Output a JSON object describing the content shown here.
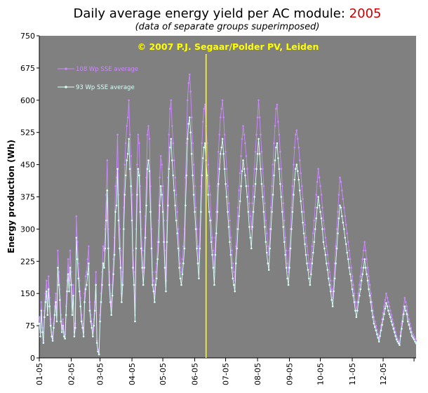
{
  "title": {
    "prefix": "Daily average energy yield per AC module: ",
    "year": "2005"
  },
  "subtitle": "(data of separate groups superimposed)",
  "copyright": "© 2007 P.J. Segaar/Polder PV, Leiden",
  "colors": {
    "plot_bg": "#808080",
    "series_108": "#cc88ff",
    "series_93": "#d8fff8",
    "marker_line": "#ffff00",
    "title_year": "#cc0000"
  },
  "chart_data": {
    "type": "line",
    "title": "Daily average energy yield per AC module: 2005",
    "subtitle": "(data of separate groups superimposed)",
    "xlabel": "",
    "ylabel": "Energy production (Wh)",
    "ylim": [
      0,
      750
    ],
    "y_ticks": [
      0,
      75,
      150,
      225,
      300,
      375,
      450,
      525,
      600,
      675,
      750
    ],
    "x_ticks": [
      "01-05",
      "02-05",
      "03-05",
      "04-05",
      "05-05",
      "06-05",
      "07-05",
      "08-05",
      "09-05",
      "10-05",
      "11-05",
      "12-05"
    ],
    "x_unit": "day of year 2005",
    "grid": false,
    "legend_position": "top-left",
    "marker_day": 162,
    "series": [
      {
        "name": "108 Wp SSE average",
        "color": "#cc88ff",
        "values": [
          95,
          60,
          130,
          70,
          40,
          110,
          150,
          180,
          120,
          190,
          140,
          90,
          60,
          45,
          80,
          120,
          150,
          100,
          250,
          200,
          160,
          100,
          70,
          90,
          60,
          55,
          120,
          180,
          230,
          180,
          250,
          200,
          120,
          170,
          60,
          80,
          330,
          270,
          220,
          180,
          140,
          100,
          80,
          60,
          150,
          190,
          200,
          230,
          260,
          130,
          100,
          80,
          60,
          90,
          130,
          200,
          40,
          20,
          10,
          100,
          150,
          200,
          260,
          250,
          300,
          380,
          460,
          300,
          200,
          150,
          120,
          170,
          230,
          280,
          400,
          420,
          520,
          380,
          300,
          250,
          150,
          200,
          350,
          450,
          500,
          540,
          560,
          600,
          520,
          470,
          380,
          250,
          200,
          100,
          300,
          450,
          520,
          500,
          400,
          300,
          250,
          200,
          250,
          330,
          420,
          520,
          540,
          510,
          400,
          300,
          200,
          180,
          150,
          200,
          220,
          270,
          320,
          420,
          470,
          450,
          400,
          320,
          250,
          180,
          320,
          420,
          520,
          580,
          600,
          540,
          500,
          460,
          420,
          380,
          340,
          300,
          250,
          220,
          200,
          230,
          260,
          300,
          420,
          500,
          600,
          640,
          660,
          620,
          560,
          500,
          450,
          400,
          350,
          300,
          260,
          220,
          300,
          400,
          500,
          550,
          580,
          590,
          540,
          500,
          450,
          400,
          380,
          320,
          280,
          250,
          200,
          280,
          340,
          400,
          480,
          520,
          560,
          580,
          600,
          560,
          520,
          480,
          440,
          400,
          360,
          320,
          280,
          250,
          220,
          200,
          180,
          260,
          300,
          350,
          390,
          430,
          470,
          510,
          540,
          520,
          500,
          470,
          440,
          400,
          360,
          330,
          300,
          360,
          400,
          440,
          480,
          520,
          560,
          600,
          560,
          520,
          480,
          440,
          400,
          360,
          320,
          290,
          260,
          240,
          300,
          350,
          400,
          450,
          500,
          540,
          580,
          590,
          550,
          520,
          480,
          440,
          400,
          360,
          320,
          280,
          250,
          220,
          200,
          250,
          300,
          350,
          400,
          450,
          490,
          520,
          530,
          510,
          490,
          460,
          430,
          400,
          370,
          340,
          310,
          280,
          260,
          240,
          220,
          200,
          230,
          260,
          290,
          320,
          350,
          380,
          410,
          440,
          420,
          400,
          380,
          350,
          320,
          300,
          280,
          260,
          240,
          220,
          200,
          180,
          160,
          140,
          180,
          220,
          260,
          300,
          340,
          380,
          420,
          410,
          390,
          370,
          350,
          330,
          310,
          290,
          270,
          250,
          230,
          210,
          190,
          170,
          150,
          130,
          110,
          130,
          150,
          170,
          190,
          210,
          230,
          250,
          270,
          250,
          230,
          210,
          190,
          170,
          150,
          130,
          110,
          95,
          85,
          75,
          65,
          55,
          45,
          60,
          75,
          90,
          105,
          120,
          135,
          150,
          140,
          130,
          120,
          110,
          100,
          90,
          80,
          70,
          60,
          50,
          45,
          40,
          35,
          60,
          80,
          100,
          120,
          140,
          130,
          120,
          100,
          90,
          80,
          70,
          60,
          55,
          50,
          45,
          40
        ]
      },
      {
        "name": "93 Wp SSE average",
        "color": "#d8fff8",
        "values": [
          80,
          50,
          110,
          60,
          35,
          95,
          130,
          155,
          100,
          160,
          120,
          75,
          50,
          40,
          70,
          100,
          130,
          85,
          210,
          170,
          135,
          85,
          60,
          75,
          50,
          45,
          100,
          155,
          195,
          155,
          210,
          170,
          100,
          145,
          50,
          70,
          280,
          230,
          185,
          155,
          120,
          85,
          70,
          50,
          130,
          160,
          170,
          195,
          220,
          110,
          85,
          70,
          50,
          75,
          110,
          170,
          35,
          15,
          8,
          85,
          130,
          170,
          220,
          210,
          255,
          320,
          390,
          255,
          170,
          130,
          100,
          145,
          195,
          240,
          340,
          355,
          440,
          320,
          255,
          210,
          130,
          170,
          300,
          380,
          425,
          460,
          475,
          510,
          440,
          400,
          320,
          210,
          170,
          85,
          255,
          380,
          440,
          425,
          340,
          255,
          210,
          170,
          210,
          280,
          355,
          440,
          460,
          435,
          340,
          255,
          170,
          155,
          130,
          170,
          185,
          230,
          270,
          355,
          400,
          380,
          340,
          270,
          210,
          155,
          270,
          355,
          440,
          490,
          510,
          460,
          425,
          390,
          355,
          320,
          290,
          255,
          210,
          185,
          170,
          195,
          220,
          255,
          355,
          425,
          510,
          545,
          560,
          525,
          475,
          425,
          380,
          340,
          300,
          255,
          220,
          185,
          255,
          340,
          425,
          465,
          490,
          500,
          460,
          425,
          380,
          340,
          320,
          270,
          240,
          210,
          170,
          240,
          290,
          340,
          405,
          440,
          475,
          490,
          510,
          475,
          440,
          405,
          375,
          340,
          305,
          270,
          240,
          210,
          185,
          170,
          155,
          220,
          255,
          300,
          330,
          365,
          400,
          435,
          460,
          440,
          425,
          400,
          375,
          340,
          305,
          280,
          255,
          305,
          340,
          375,
          405,
          440,
          475,
          510,
          475,
          440,
          405,
          375,
          340,
          305,
          270,
          245,
          220,
          205,
          255,
          300,
          340,
          380,
          425,
          460,
          490,
          500,
          465,
          440,
          405,
          375,
          340,
          305,
          270,
          240,
          210,
          185,
          170,
          210,
          255,
          300,
          340,
          380,
          415,
          440,
          450,
          435,
          415,
          390,
          365,
          340,
          315,
          290,
          265,
          240,
          220,
          205,
          185,
          170,
          195,
          220,
          245,
          270,
          300,
          325,
          350,
          375,
          355,
          340,
          325,
          300,
          270,
          255,
          240,
          220,
          205,
          185,
          170,
          155,
          135,
          120,
          155,
          185,
          220,
          255,
          290,
          325,
          355,
          350,
          330,
          315,
          300,
          280,
          265,
          245,
          230,
          210,
          195,
          180,
          160,
          145,
          130,
          110,
          95,
          110,
          130,
          145,
          160,
          180,
          195,
          210,
          230,
          210,
          195,
          180,
          160,
          145,
          130,
          110,
          95,
          80,
          72,
          64,
          55,
          47,
          38,
          51,
          64,
          77,
          90,
          102,
          115,
          128,
          120,
          110,
          102,
          95,
          85,
          77,
          68,
          60,
          51,
          43,
          38,
          34,
          30,
          51,
          68,
          85,
          102,
          120,
          110,
          102,
          85,
          77,
          68,
          60,
          51,
          47,
          43,
          38,
          34
        ]
      }
    ]
  }
}
